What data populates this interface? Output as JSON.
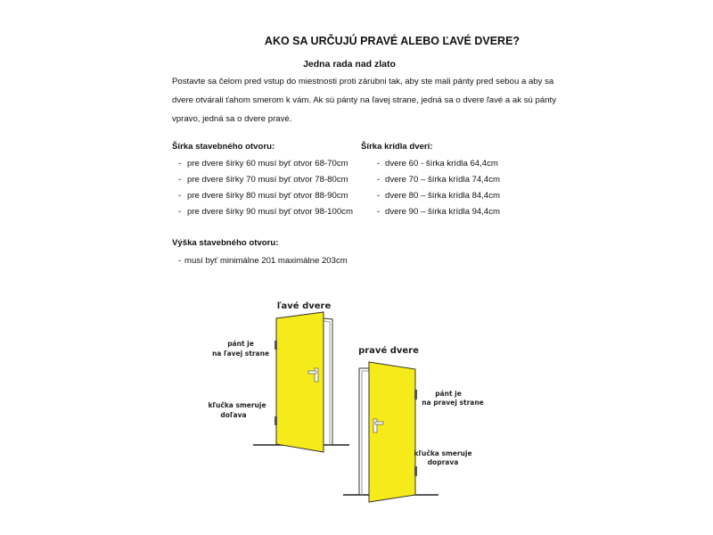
{
  "title": "AKO SA URČUJÚ PRAVÉ ALEBO ĽAVÉ DVERE?",
  "subtitle": "Jedna rada nad zlato",
  "paragraph": [
    "Postavte sa čelom pred vstup do miestnosti proti zárubni tak, aby ste mali pánty pred sebou a aby sa",
    "dvere otvárali ťahom smerom k vám. Ak sú pánty na ľavej strane, jedná sa o dvere ľavé a ak sú pánty",
    "vpravo, jedná sa o dvere pravé."
  ],
  "opening_width": {
    "heading": "Šírka stavebného otvoru:",
    "items": [
      "pre dvere šírky 60 musí byť otvor 68-70cm",
      "pre dvere šírky 70 musí byť otvor 78-80cm",
      "pre dvere šírky 80 musí byť otvor 88-90cm",
      "pre dvere šírky 90 musí byť otvor 98-100cm"
    ]
  },
  "leaf_width": {
    "heading": "Šírka krídla dverí:",
    "items": [
      "dvere 60 - šírka krídla 64,4cm",
      "dvere 70 – šírka krídla 74,4cm",
      "dvere 80 – šírka krídla 84,4cm",
      "dvere 90 – šírka krídla 94,4cm"
    ]
  },
  "opening_height": {
    "heading": "Výška stavebného otvoru:",
    "items": [
      "musí byť minimálne 201 maximálne 203cm"
    ]
  },
  "bullet": "-",
  "diagram": {
    "left": {
      "title": "ľavé dvere",
      "hinge_label": [
        "pánt je",
        "na ľavej strane"
      ],
      "handle_label": [
        "kľučka smeruje",
        "doľava"
      ]
    },
    "right": {
      "title": "pravé dvere",
      "hinge_label": [
        "pánt je",
        "na pravej strane"
      ],
      "handle_label": [
        "kľučka smeruje",
        "doprava"
      ]
    },
    "door_color": "#f5ea1a"
  }
}
